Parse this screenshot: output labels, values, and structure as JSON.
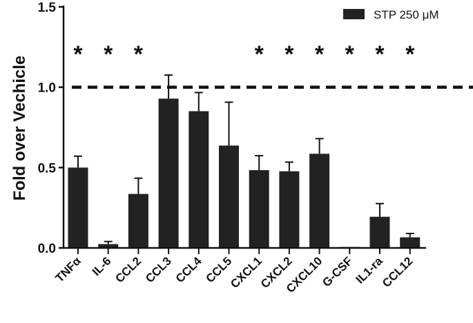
{
  "chart_data": {
    "type": "bar",
    "title": "",
    "xlabel": "",
    "ylabel": "Fold over Vechicle",
    "ylim": [
      0,
      1.5
    ],
    "yticks": [
      "0.0",
      "0.5",
      "1.0",
      "1.5"
    ],
    "categories": [
      "TNFα",
      "IL-6",
      "CCL2",
      "CCL3",
      "CCL4",
      "CCL5",
      "CXCL1",
      "CXCL2",
      "CXCL10",
      "G-CSF",
      "IL1-ra",
      "CCL12"
    ],
    "series": [
      {
        "name": "STP 250 μM",
        "color": "#222222",
        "values": [
          0.5,
          0.024,
          0.336,
          0.929,
          0.851,
          0.637,
          0.484,
          0.477,
          0.586,
          0.006,
          0.194,
          0.066
        ],
        "error_upper": [
          0.071,
          0.016,
          0.098,
          0.147,
          0.116,
          0.27,
          0.09,
          0.057,
          0.094,
          0.0,
          0.082,
          0.024
        ]
      }
    ],
    "significance": [
      "*",
      "*",
      "*",
      "",
      "",
      "",
      "*",
      "*",
      "*",
      "*",
      "*",
      "*"
    ],
    "reference_line": 1.0,
    "legend": {
      "position": "top-right",
      "entries": [
        "STP 250 μM"
      ]
    },
    "grid": false
  }
}
